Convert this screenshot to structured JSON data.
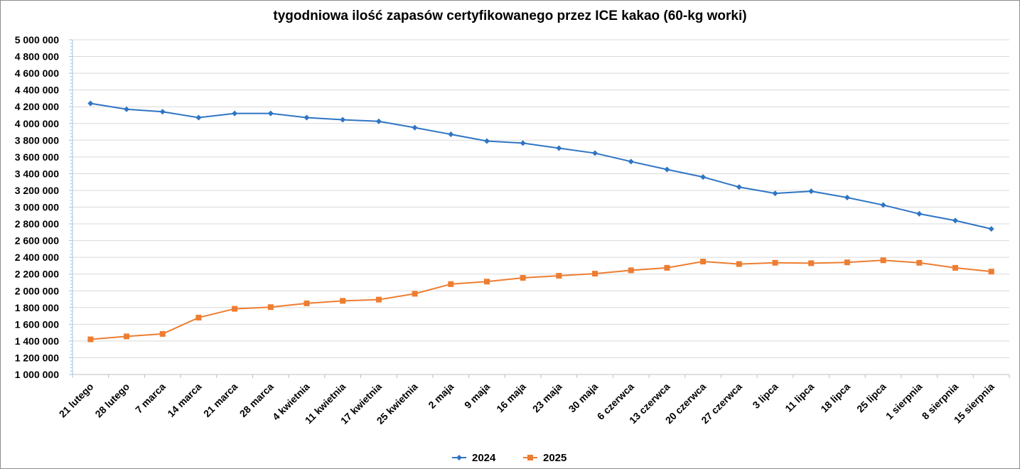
{
  "chart_data": {
    "type": "line",
    "title": "tygodniowa ilość zapasów certyfikowanego przez ICE kakao (60-kg worki)",
    "xlabel": "",
    "ylabel": "",
    "ylim": [
      1000000,
      5000000
    ],
    "ytick_values": [
      1000000,
      1200000,
      1400000,
      1600000,
      1800000,
      2000000,
      2200000,
      2400000,
      2600000,
      2800000,
      3000000,
      3200000,
      3400000,
      3600000,
      3800000,
      4000000,
      4200000,
      4400000,
      4600000,
      4800000,
      5000000
    ],
    "ytick_labels": [
      "1 000 000",
      "1 200 000",
      "1 400 000",
      "1 600 000",
      "1 800 000",
      "2 000 000",
      "2 200 000",
      "2 400 000",
      "2 600 000",
      "2 800 000",
      "3 000 000",
      "3 200 000",
      "3 400 000",
      "3 600 000",
      "3 800 000",
      "4 000 000",
      "4 200 000",
      "4 400 000",
      "4 600 000",
      "4 800 000",
      "5 000 000"
    ],
    "grid": true,
    "legend_position": "bottom",
    "categories": [
      "21 lutego",
      "28 lutego",
      "7 marca",
      "14 marca",
      "21 marca",
      "28 marca",
      "4 kwietnia",
      "11 kwietnia",
      "17 kwietnia",
      "25 kwietnia",
      "2 maja",
      "9 maja",
      "16 maja",
      "23 maja",
      "30 maja",
      "6 czerwca",
      "13 czerwca",
      "20 czerwca",
      "27 czerwca",
      "3 lipca",
      "11 lipca",
      "18 lipca",
      "25 lipca",
      "1 sierpnia",
      "8 sierpnia",
      "15 sierpnia"
    ],
    "series": [
      {
        "name": "2024",
        "color": "#2e75c4",
        "marker": "diamond",
        "values": [
          4240000,
          4170000,
          4140000,
          4070000,
          4120000,
          4120000,
          4070000,
          4045000,
          4025000,
          3950000,
          3870000,
          3790000,
          3765000,
          3705000,
          3645000,
          3545000,
          3450000,
          3360000,
          3240000,
          3165000,
          3190000,
          3115000,
          3025000,
          2920000,
          2840000,
          2740000
        ]
      },
      {
        "name": "2025",
        "color": "#ed7d31",
        "marker": "square",
        "values": [
          1420000,
          1455000,
          1485000,
          1680000,
          1785000,
          1805000,
          1850000,
          1880000,
          1895000,
          1965000,
          2080000,
          2110000,
          2155000,
          2180000,
          2205000,
          2245000,
          2275000,
          2350000,
          2320000,
          2335000,
          2330000,
          2340000,
          2365000,
          2335000,
          2275000,
          2230000
        ]
      }
    ]
  }
}
